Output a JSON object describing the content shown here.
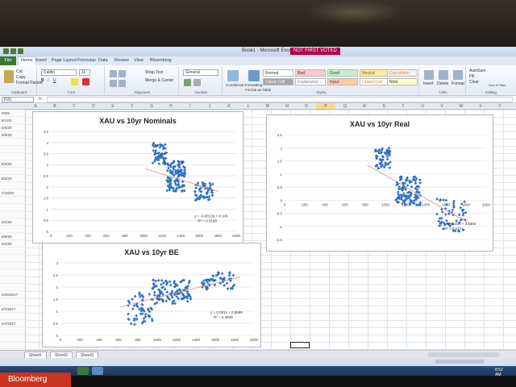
{
  "window": {
    "title": "Book1 - Microsoft Excel",
    "badge": "NOT FIRST VOTED"
  },
  "tabs": [
    "File",
    "Home",
    "Insert",
    "Page Layout",
    "Formulas",
    "Data",
    "Review",
    "View",
    "Bloomberg"
  ],
  "ribbon": {
    "clipboard": {
      "cut": "Cut",
      "copy": "Copy",
      "paste": "Paste",
      "format_painter": "Format Painter",
      "label": "Clipboard"
    },
    "font": {
      "name": "Calibri",
      "size": "11",
      "label": "Font"
    },
    "alignment": {
      "wrap": "Wrap Text",
      "merge": "Merge & Center",
      "label": "Alignment"
    },
    "number": {
      "format": "General",
      "label": "Number"
    },
    "styles": {
      "conditional": "Conditional Formatting",
      "format_table": "Format as Table",
      "cells": [
        "Normal",
        "Bad",
        "Good",
        "Neutral",
        "Calculation",
        "Check Cell",
        "Explanatory ...",
        "Input",
        "Linked Cell",
        "Note"
      ],
      "label": "Styles"
    },
    "cells": {
      "insert": "Insert",
      "delete": "Delete",
      "format": "Format",
      "label": "Cells"
    },
    "editing": {
      "autosum": "AutoSum",
      "fill": "Fill",
      "clear": "Clear",
      "sort": "Sort & Filter",
      "find": "Find & Select",
      "label": "Editing"
    }
  },
  "formula_bar": {
    "name_box": "P20"
  },
  "columns": [
    "A",
    "B",
    "C",
    "D",
    "E",
    "F",
    "G",
    "H",
    "I",
    "J",
    "K",
    "L",
    "M",
    "N",
    "O",
    "P",
    "Q",
    "R",
    "S",
    "T",
    "U",
    "V",
    "W",
    "X",
    "Y",
    "Z"
  ],
  "selected_column": "P",
  "rows": [
    "2005",
    "5/12/2",
    "5/8/20",
    "5/5/20",
    "",
    "",
    "",
    "8/3/20",
    "",
    "9/2/20",
    "",
    "7/10/20",
    "",
    "",
    "",
    "6/2/20",
    "",
    "8/9/20",
    "6/2/20",
    "",
    "",
    "",
    "",
    "",
    "",
    "3/25/2017",
    "",
    "4/7/2017",
    "",
    "4/7/2017",
    "",
    "",
    "",
    "",
    "2/20/2017",
    "",
    "3/1/2017",
    ""
  ],
  "sheets": [
    "Sheet1",
    "Sheet2",
    "Sheet3"
  ],
  "taskbar": {
    "brand": "Bloomberg",
    "clock": "8:52 AM"
  },
  "chart_data": [
    {
      "type": "scatter",
      "title": "XAU vs 10yr Nominals",
      "xlim": [
        0,
        2000
      ],
      "ylim": [
        0,
        4.5
      ],
      "x_ticks": [
        "0",
        "200",
        "400",
        "600",
        "800",
        "1000",
        "1200",
        "1400",
        "1600",
        "1800",
        "2000"
      ],
      "y_ticks": [
        "0",
        "0.5",
        "1",
        "1.5",
        "2",
        "2.5",
        "3",
        "3.5",
        "4",
        "4.5"
      ],
      "trendline_label": "y = -0.0013x + 4.145",
      "r2_label": "R² = 0.3168",
      "trend": {
        "slope": -0.0013,
        "intercept": 4.145
      },
      "clusters": [
        {
          "x": [
            1100,
            1250
          ],
          "y": [
            3.0,
            4.0
          ]
        },
        {
          "x": [
            1250,
            1450
          ],
          "y": [
            1.8,
            3.2
          ]
        },
        {
          "x": [
            1550,
            1750
          ],
          "y": [
            1.4,
            2.2
          ]
        }
      ],
      "marker_color": "#2f6fc6",
      "trend_color": "#e08a8a"
    },
    {
      "type": "scatter",
      "title": "XAU vs 10yr Real",
      "xlim": [
        0,
        2000
      ],
      "ylim": [
        -1.5,
        2.5
      ],
      "x_ticks": [
        "0",
        "200",
        "400",
        "600",
        "800",
        "1000",
        "1200",
        "1400",
        "1600",
        "1800",
        "2000"
      ],
      "y_ticks": [
        "-1.5",
        "-1",
        "-0.5",
        "0",
        "0.5",
        "1",
        "1.5",
        "2",
        "2.5"
      ],
      "trendline_label": "y = -0.0022x + 3.1465",
      "r2_label": "R² = 0.8131",
      "trend": {
        "slope": -0.0022,
        "intercept": 3.1465
      },
      "clusters": [
        {
          "x": [
            900,
            1050
          ],
          "y": [
            1.2,
            2.0
          ]
        },
        {
          "x": [
            1100,
            1350
          ],
          "y": [
            -0.2,
            0.9
          ]
        },
        {
          "x": [
            1500,
            1800
          ],
          "y": [
            -1.2,
            0.1
          ]
        }
      ],
      "marker_color": "#2f6fc6",
      "trend_color": "#e08a8a"
    },
    {
      "type": "scatter",
      "title": "XAU vs 10yr BE",
      "xlim": [
        0,
        2000
      ],
      "ylim": [
        0,
        3
      ],
      "x_ticks": [
        "0",
        "200",
        "400",
        "600",
        "800",
        "1000",
        "1200",
        "1400",
        "1600",
        "1800",
        "2000"
      ],
      "y_ticks": [
        "0",
        "0.5",
        "1",
        "1.5",
        "2",
        "2.5",
        "3"
      ],
      "trendline_label": "y = 0.001x + 0.5588",
      "r2_label": "R² = 0.3849",
      "trend": {
        "slope": 0.001,
        "intercept": 0.5588
      },
      "clusters": [
        {
          "x": [
            700,
            950
          ],
          "y": [
            0.4,
            1.8
          ]
        },
        {
          "x": [
            950,
            1350
          ],
          "y": [
            1.3,
            2.3
          ]
        },
        {
          "x": [
            1450,
            1800
          ],
          "y": [
            1.9,
            2.6
          ]
        }
      ],
      "marker_color": "#2f6fc6",
      "trend_color": "#e08a8a"
    }
  ]
}
